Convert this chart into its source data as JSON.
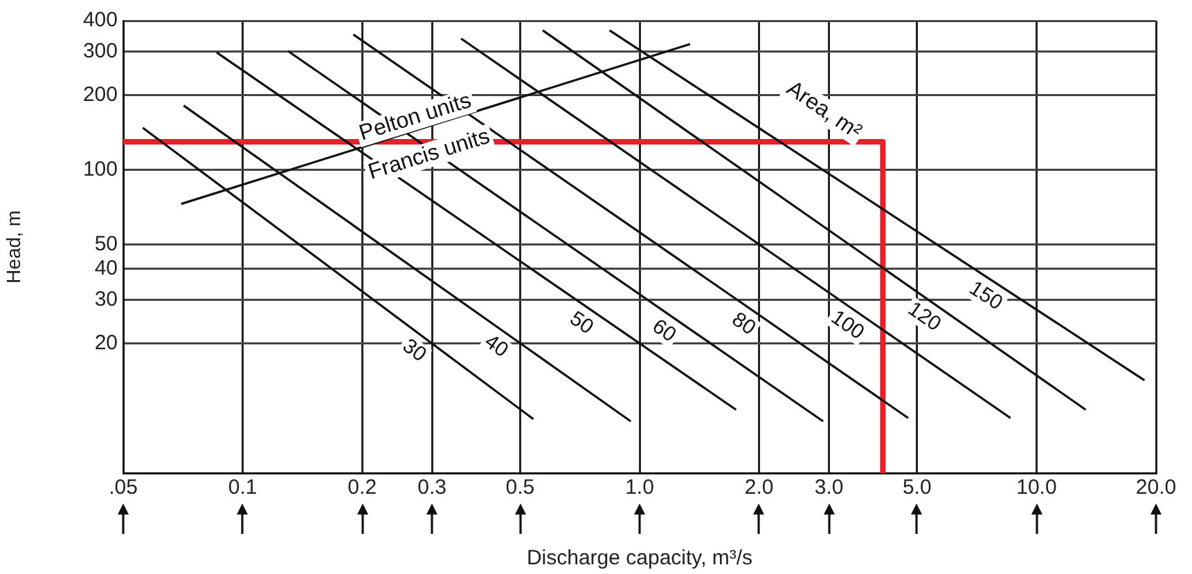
{
  "chart_data": {
    "type": "line",
    "xlabel": "Discharge capacity, m³/s",
    "ylabel": "Head, m",
    "log": "xy",
    "grid": true,
    "legend": false,
    "marker": "none",
    "line_style": "solid",
    "xlim": [
      0.05,
      20
    ],
    "ylim": [
      6,
      400
    ],
    "xticks": [
      {
        "value": 0.05,
        "label": ".05"
      },
      0.1,
      0.2,
      0.3,
      0.5,
      {
        "value": 1,
        "label": "1.0"
      },
      {
        "value": 2,
        "label": "2.0"
      },
      {
        "value": 3,
        "label": "3.0"
      },
      {
        "value": 5,
        "label": "5.0"
      },
      {
        "value": 10,
        "label": "10.0"
      },
      {
        "value": 20,
        "label": "20.0"
      }
    ],
    "yticks": [
      20,
      30,
      40,
      50,
      100,
      200,
      300,
      400
    ],
    "series": [
      {
        "name": "30",
        "color": "#111111",
        "x": [
          0.056,
          0.54
        ],
        "values": [
          148,
          9.9
        ]
      },
      {
        "name": "40",
        "color": "#111111",
        "x": [
          0.071,
          0.95
        ],
        "values": [
          182,
          9.7
        ]
      },
      {
        "name": "50",
        "color": "#111111",
        "x": [
          0.086,
          1.75
        ],
        "values": [
          298,
          10.8
        ]
      },
      {
        "name": "60",
        "color": "#111111",
        "x": [
          0.13,
          2.9
        ],
        "values": [
          302,
          9.7
        ]
      },
      {
        "name": "80",
        "color": "#111111",
        "x": [
          0.19,
          4.75
        ],
        "values": [
          352,
          10
        ]
      },
      {
        "name": "100",
        "color": "#111111",
        "x": [
          0.355,
          8.6
        ],
        "values": [
          339,
          10
        ]
      },
      {
        "name": "120",
        "color": "#111111",
        "x": [
          0.57,
          13.3
        ],
        "values": [
          366,
          10.8
        ]
      },
      {
        "name": "150",
        "color": "#111111",
        "x": [
          0.84,
          18.7
        ],
        "values": [
          366,
          14.2
        ]
      },
      {
        "color": "#111111",
        "x": [
          0.07,
          1.34
        ],
        "values": [
          73,
          322
        ]
      },
      {
        "color": "#e8202a",
        "x": [
          0.05,
          4.1,
          4.1
        ],
        "values": [
          130,
          130,
          6
        ]
      }
    ],
    "annotations": [
      "Pelton units",
      "Francis units",
      "Area, m²"
    ]
  }
}
